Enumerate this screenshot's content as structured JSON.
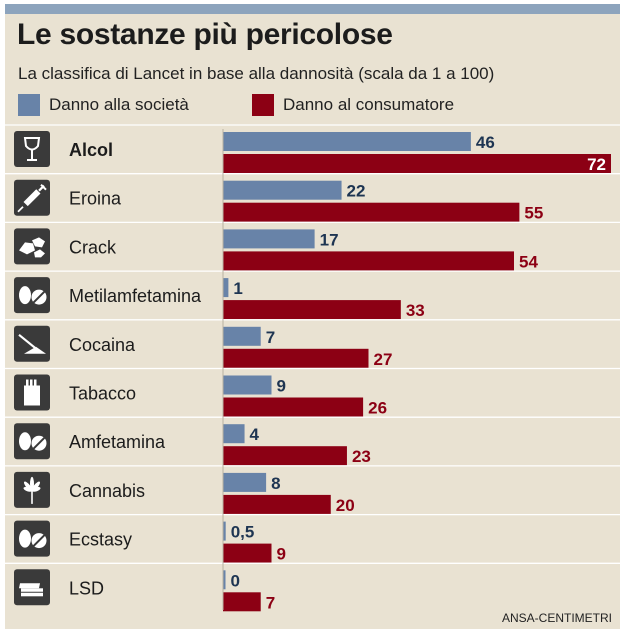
{
  "title": "Le sostanze più pericolose",
  "subtitle": "La classifica di Lancet in base alla dannosità (scala da 1 a 100)",
  "credit": "ANSA-CENTIMETRI",
  "colors": {
    "society": "#6883a8",
    "consumer": "#8c0014",
    "society_text": "#1e3552",
    "consumer_text": "#8c0014",
    "icon_bg": "#3a3a3a",
    "background": "#e9e2d2",
    "top_bar": "#8da4bd"
  },
  "chart_data": {
    "type": "bar",
    "orientation": "horizontal",
    "title": "Le sostanze più pericolose",
    "subtitle": "La classifica di Lancet in base alla dannosità (scala da 1 a 100)",
    "xlim": [
      0,
      72
    ],
    "categories": [
      "Alcol",
      "Eroina",
      "Crack",
      "Metilamfetamina",
      "Cocaina",
      "Tabacco",
      "Amfetamina",
      "Cannabis",
      "Ecstasy",
      "LSD"
    ],
    "icons": [
      "wine-glass-icon",
      "syringe-icon",
      "crack-rocks-icon",
      "pills-icon",
      "cocaine-line-icon",
      "cigarette-pack-icon",
      "pills-icon",
      "cannabis-leaf-icon",
      "pills-icon",
      "lsd-tabs-icon"
    ],
    "bold_category": "Alcol",
    "series": [
      {
        "name": "Danno alla società",
        "key": "society",
        "values": [
          46,
          22,
          17,
          1,
          7,
          9,
          4,
          8,
          0.5,
          0
        ],
        "labels": [
          "46",
          "22",
          "17",
          "1",
          "7",
          "9",
          "4",
          "8",
          "0,5",
          "0"
        ]
      },
      {
        "name": "Danno al consumatore",
        "key": "consumer",
        "values": [
          72,
          55,
          54,
          33,
          27,
          26,
          23,
          20,
          9,
          7
        ],
        "labels": [
          "72",
          "55",
          "54",
          "33",
          "27",
          "26",
          "23",
          "20",
          "9",
          "7"
        ]
      }
    ],
    "legend": "top"
  }
}
